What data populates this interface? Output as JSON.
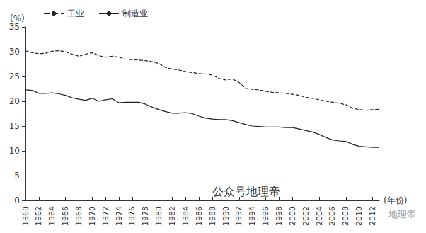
{
  "chart_data": {
    "type": "line",
    "x_label": "(年份)",
    "y_label": "(%)",
    "x": [
      1960,
      1961,
      1962,
      1963,
      1964,
      1965,
      1966,
      1967,
      1968,
      1969,
      1970,
      1971,
      1972,
      1973,
      1974,
      1975,
      1976,
      1977,
      1978,
      1979,
      1980,
      1981,
      1982,
      1983,
      1984,
      1985,
      1986,
      1987,
      1988,
      1989,
      1990,
      1991,
      1992,
      1993,
      1994,
      1995,
      1996,
      1997,
      1998,
      1999,
      2000,
      2001,
      2002,
      2003,
      2004,
      2005,
      2006,
      2007,
      2008,
      2009,
      2010,
      2011,
      2012,
      2013
    ],
    "series": [
      {
        "name": "工业",
        "color": "#222222",
        "line_style": "dashed",
        "values": [
          30.2,
          29.8,
          29.6,
          29.7,
          30.1,
          30.2,
          30.0,
          29.5,
          29.1,
          29.5,
          29.8,
          29.2,
          28.9,
          29.1,
          28.9,
          28.5,
          28.4,
          28.3,
          28.2,
          28.0,
          27.6,
          26.8,
          26.5,
          26.3,
          26.0,
          25.8,
          25.6,
          25.5,
          25.3,
          24.6,
          24.3,
          24.5,
          23.8,
          22.6,
          22.4,
          22.3,
          22.0,
          21.8,
          21.7,
          21.6,
          21.4,
          21.2,
          20.8,
          20.6,
          20.3,
          20.0,
          19.8,
          19.6,
          19.3,
          18.6,
          18.3,
          18.2,
          18.3,
          18.4
        ]
      },
      {
        "name": "制造业",
        "color": "#222222",
        "line_style": "solid",
        "values": [
          22.3,
          22.2,
          21.6,
          21.6,
          21.7,
          21.5,
          21.2,
          20.7,
          20.4,
          20.2,
          20.6,
          20.0,
          20.3,
          20.5,
          19.7,
          19.8,
          19.8,
          19.8,
          19.4,
          18.8,
          18.3,
          17.9,
          17.6,
          17.6,
          17.7,
          17.5,
          17.0,
          16.6,
          16.4,
          16.3,
          16.3,
          16.1,
          15.7,
          15.3,
          15.0,
          14.9,
          14.8,
          14.8,
          14.8,
          14.7,
          14.7,
          14.4,
          14.1,
          13.8,
          13.3,
          12.7,
          12.2,
          12.0,
          11.9,
          11.3,
          10.9,
          10.8,
          10.7,
          10.7
        ]
      }
    ],
    "xlim": [
      1960,
      2013
    ],
    "xticks": [
      1960,
      1962,
      1964,
      1966,
      1968,
      1970,
      1972,
      1974,
      1976,
      1978,
      1980,
      1982,
      1984,
      1986,
      1988,
      1990,
      1992,
      1994,
      1996,
      1998,
      2000,
      2002,
      2004,
      2006,
      2008,
      2010,
      2012
    ],
    "ylim": [
      0,
      35
    ],
    "yticks": [
      0,
      5,
      10,
      15,
      20,
      25,
      30,
      35
    ],
    "grid": false,
    "legend": "top-left",
    "annotations": [
      "公众号地理帝",
      "地理帝"
    ]
  }
}
